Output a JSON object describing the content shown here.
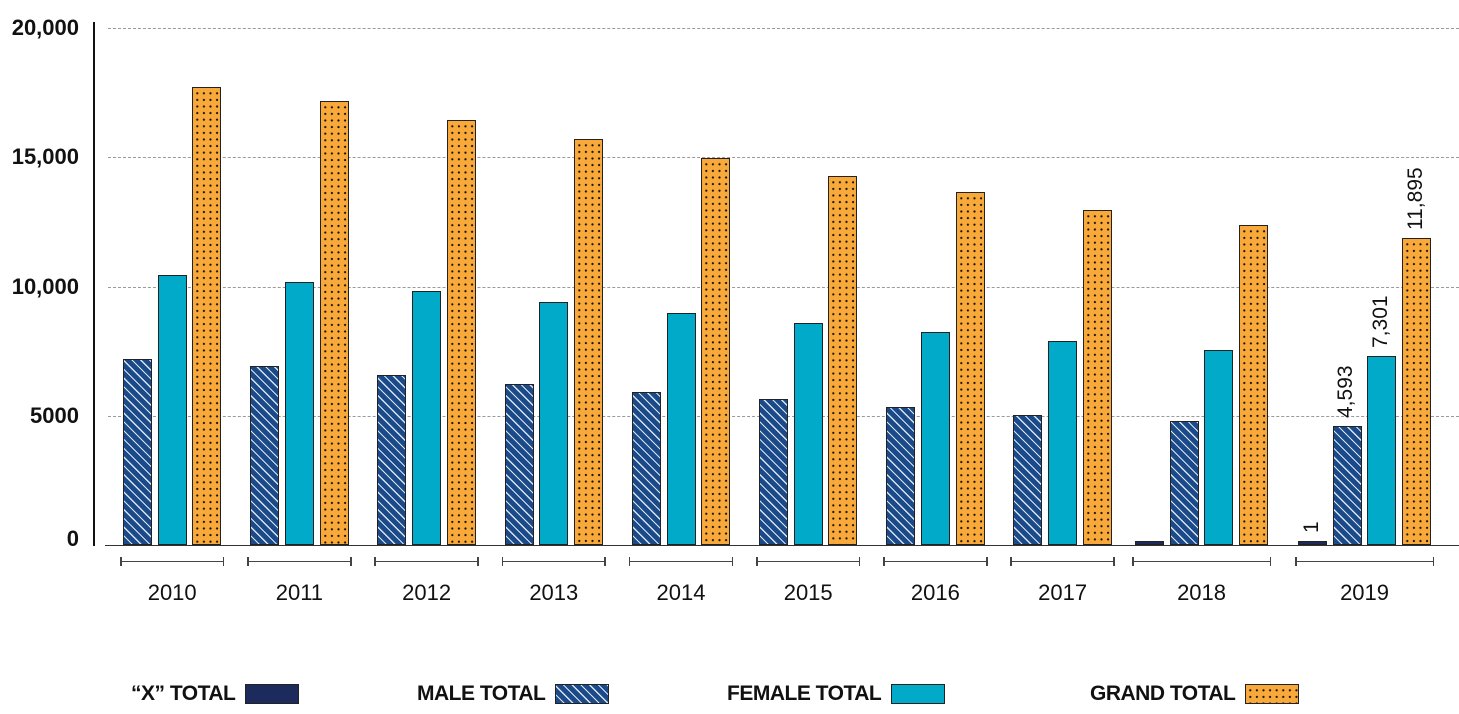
{
  "chart_data": {
    "type": "bar",
    "title": "",
    "xlabel": "",
    "ylabel": "",
    "ylim": [
      0,
      20000
    ],
    "yticks": [
      0,
      5000,
      10000,
      15000,
      20000
    ],
    "ytick_labels": [
      "0",
      "5000",
      "10,000",
      "15,000",
      "20,000"
    ],
    "grid": true,
    "legend_position": "bottom",
    "categories": [
      "2010",
      "2011",
      "2012",
      "2013",
      "2014",
      "2015",
      "2016",
      "2017",
      "2018",
      "2019"
    ],
    "series": [
      {
        "name": "“X” TOTAL",
        "key": "x",
        "color": "#1c2a5c",
        "pattern": "solid",
        "values": [
          null,
          null,
          null,
          null,
          null,
          null,
          null,
          null,
          1,
          1
        ]
      },
      {
        "name": "MALE TOTAL",
        "key": "male",
        "color": "#1a4a8a",
        "pattern": "diagonal-hatch",
        "values": [
          7200,
          6920,
          6580,
          6230,
          5920,
          5650,
          5340,
          5030,
          4800,
          4593
        ]
      },
      {
        "name": "FEMALE TOTAL",
        "key": "female",
        "color": "#00aac8",
        "pattern": "solid",
        "values": [
          10440,
          10170,
          9830,
          9400,
          8980,
          8590,
          8240,
          7890,
          7540,
          7301
        ]
      },
      {
        "name": "GRAND TOTAL",
        "key": "grand",
        "color": "#f8a93a",
        "pattern": "dots",
        "values": [
          17720,
          17180,
          16440,
          15700,
          14970,
          14270,
          13650,
          12960,
          12380,
          11895
        ]
      }
    ],
    "annotations": [
      {
        "category": "2019",
        "series": "“X” TOTAL",
        "text": "1"
      },
      {
        "category": "2019",
        "series": "MALE TOTAL",
        "text": "4,593"
      },
      {
        "category": "2019",
        "series": "FEMALE TOTAL",
        "text": "7,301"
      },
      {
        "category": "2019",
        "series": "GRAND TOTAL",
        "text": "11,895"
      }
    ]
  },
  "legend": {
    "items": [
      {
        "label": "“X” TOTAL",
        "key": "x"
      },
      {
        "label": "MALE TOTAL",
        "key": "male"
      },
      {
        "label": "FEMALE TOTAL",
        "key": "female"
      },
      {
        "label": "GRAND TOTAL",
        "key": "grand"
      }
    ]
  }
}
